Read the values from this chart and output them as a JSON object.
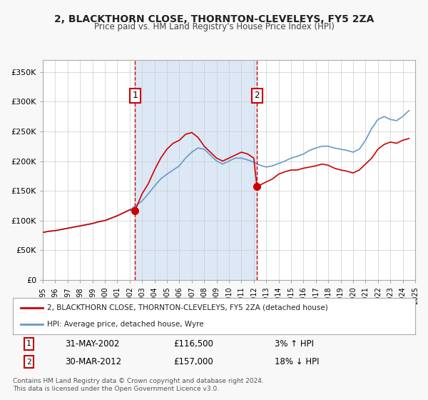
{
  "title": "2, BLACKTHORN CLOSE, THORNTON-CLEVELEYS, FY5 2ZA",
  "subtitle": "Price paid vs. HM Land Registry's House Price Index (HPI)",
  "legend_line1": "2, BLACKTHORN CLOSE, THORNTON-CLEVELEYS, FY5 2ZA (detached house)",
  "legend_line2": "HPI: Average price, detached house, Wyre",
  "sale1_label": "1",
  "sale1_date": "31-MAY-2002",
  "sale1_price": "£116,500",
  "sale1_hpi": "3% ↑ HPI",
  "sale1_year": 2002.42,
  "sale1_value": 116500,
  "sale2_label": "2",
  "sale2_date": "30-MAR-2012",
  "sale2_price": "£157,000",
  "sale2_hpi": "18% ↓ HPI",
  "sale2_year": 2012.25,
  "sale2_value": 157000,
  "ylabel_ticks": [
    "£0",
    "£50K",
    "£100K",
    "£150K",
    "£200K",
    "£250K",
    "£300K",
    "£350K"
  ],
  "ytick_values": [
    0,
    50000,
    100000,
    150000,
    200000,
    250000,
    300000,
    350000
  ],
  "xlim": [
    1995,
    2025
  ],
  "ylim": [
    0,
    370000
  ],
  "background_color": "#f8f8f8",
  "plot_bg_color": "#ffffff",
  "shaded_region_color": "#dce8f5",
  "grid_color": "#cccccc",
  "red_line_color": "#cc0000",
  "blue_line_color": "#6699cc",
  "dashed_line_color": "#cc0000",
  "sale_dot_color": "#cc0000",
  "footer_text": "Contains HM Land Registry data © Crown copyright and database right 2024.\nThis data is licensed under the Open Government Licence v3.0.",
  "hpi_x": [
    1995,
    1995.5,
    1996,
    1996.5,
    1997,
    1997.5,
    1998,
    1998.5,
    1999,
    1999.5,
    2000,
    2000.5,
    2001,
    2001.5,
    2002,
    2002.5,
    2003,
    2003.5,
    2004,
    2004.5,
    2005,
    2005.5,
    2006,
    2006.5,
    2007,
    2007.5,
    2008,
    2008.5,
    2009,
    2009.5,
    2010,
    2010.5,
    2011,
    2011.5,
    2012,
    2012.5,
    2013,
    2013.5,
    2014,
    2014.5,
    2015,
    2015.5,
    2016,
    2016.5,
    2017,
    2017.5,
    2018,
    2018.5,
    2019,
    2019.5,
    2020,
    2020.5,
    2021,
    2021.5,
    2022,
    2022.5,
    2023,
    2023.5,
    2024,
    2024.5
  ],
  "hpi_y": [
    80000,
    82000,
    83000,
    85000,
    87000,
    89000,
    91000,
    93000,
    95000,
    98000,
    100000,
    104000,
    108000,
    113000,
    118000,
    125000,
    133000,
    145000,
    158000,
    170000,
    178000,
    185000,
    192000,
    205000,
    215000,
    222000,
    220000,
    210000,
    200000,
    195000,
    200000,
    205000,
    205000,
    202000,
    198000,
    193000,
    190000,
    192000,
    196000,
    200000,
    205000,
    208000,
    212000,
    218000,
    222000,
    225000,
    225000,
    222000,
    220000,
    218000,
    215000,
    220000,
    235000,
    255000,
    270000,
    275000,
    270000,
    268000,
    275000,
    285000
  ],
  "price_x": [
    1995,
    1995.5,
    1996,
    1996.5,
    1997,
    1997.5,
    1998,
    1998.5,
    1999,
    1999.5,
    2000,
    2000.5,
    2001,
    2001.5,
    2002,
    2002.42,
    2003,
    2003.5,
    2004,
    2004.5,
    2005,
    2005.5,
    2006,
    2006.5,
    2007,
    2007.5,
    2008,
    2008.5,
    2009,
    2009.5,
    2010,
    2010.5,
    2011,
    2011.5,
    2012,
    2012.25,
    2013,
    2013.5,
    2014,
    2014.5,
    2015,
    2015.5,
    2016,
    2016.5,
    2017,
    2017.5,
    2018,
    2018.5,
    2019,
    2019.5,
    2020,
    2020.5,
    2021,
    2021.5,
    2022,
    2022.5,
    2023,
    2023.5,
    2024,
    2024.5
  ],
  "price_y": [
    80000,
    82000,
    83000,
    85000,
    87000,
    89000,
    91000,
    93000,
    95000,
    98000,
    100000,
    104000,
    108000,
    113000,
    118000,
    116500,
    145000,
    162000,
    185000,
    205000,
    220000,
    230000,
    235000,
    245000,
    248000,
    240000,
    225000,
    215000,
    205000,
    200000,
    205000,
    210000,
    215000,
    212000,
    205000,
    157000,
    165000,
    170000,
    178000,
    182000,
    185000,
    185000,
    188000,
    190000,
    192000,
    195000,
    193000,
    188000,
    185000,
    183000,
    180000,
    185000,
    195000,
    205000,
    220000,
    228000,
    232000,
    230000,
    235000,
    238000
  ]
}
